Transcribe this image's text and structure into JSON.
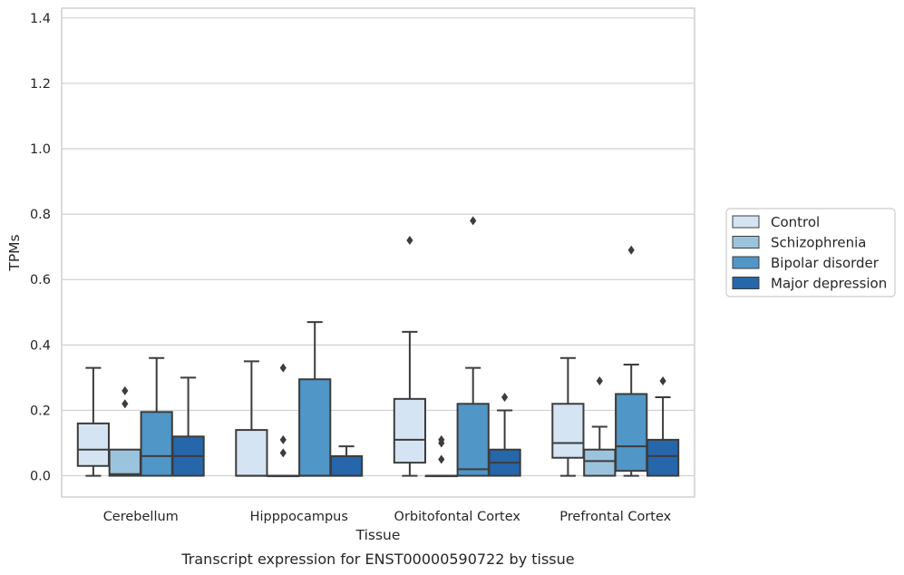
{
  "chart_data": {
    "type": "boxplot",
    "caption": "Transcript expression for ENST00000590722 by tissue",
    "xlabel": "Tissue",
    "ylabel": "TPMs",
    "ylim": [
      -0.065,
      1.43
    ],
    "yticks": [
      0.0,
      0.2,
      0.4,
      0.6,
      0.8,
      1.0,
      1.2,
      1.4
    ],
    "ytick_labels": [
      "0.0",
      "0.2",
      "0.4",
      "0.6",
      "0.8",
      "1.0",
      "1.2",
      "1.4"
    ],
    "grid": "horizontal",
    "legend_position": "right",
    "categories": [
      "Cerebellum",
      "Hipppocampus",
      "Orbitofontal Cortex",
      "Prefrontal Cortex"
    ],
    "series": [
      {
        "name": "Control",
        "color": "#d5e4f3",
        "boxes": [
          {
            "whislo": 0.0,
            "q1": 0.03,
            "med": 0.08,
            "q3": 0.16,
            "whishi": 0.33,
            "fliers": []
          },
          {
            "whislo": 0.0,
            "q1": 0.0,
            "med": 0.0,
            "q3": 0.14,
            "whishi": 0.35,
            "fliers": []
          },
          {
            "whislo": 0.0,
            "q1": 0.04,
            "med": 0.11,
            "q3": 0.235,
            "whishi": 0.44,
            "fliers": [
              0.72
            ]
          },
          {
            "whislo": 0.0,
            "q1": 0.055,
            "med": 0.1,
            "q3": 0.22,
            "whishi": 0.36,
            "fliers": []
          }
        ]
      },
      {
        "name": "Schizophrenia",
        "color": "#9cc3dd",
        "boxes": [
          {
            "whislo": 0.0,
            "q1": 0.0,
            "med": 0.005,
            "q3": 0.08,
            "whishi": 0.08,
            "fliers": [
              0.26,
              0.22
            ]
          },
          {
            "whislo": 0.0,
            "q1": 0.0,
            "med": 0.0,
            "q3": 0.0,
            "whishi": 0.0,
            "fliers": [
              0.33,
              0.11,
              0.07
            ]
          },
          {
            "whislo": 0.0,
            "q1": 0.0,
            "med": 0.0,
            "q3": 0.0,
            "whishi": 0.0,
            "fliers": [
              0.11,
              0.1,
              0.05
            ]
          },
          {
            "whislo": 0.0,
            "q1": 0.0,
            "med": 0.045,
            "q3": 0.08,
            "whishi": 0.15,
            "fliers": [
              0.29
            ]
          }
        ]
      },
      {
        "name": "Bipolar disorder",
        "color": "#5096c6",
        "boxes": [
          {
            "whislo": 0.0,
            "q1": 0.0,
            "med": 0.06,
            "q3": 0.195,
            "whishi": 0.36,
            "fliers": []
          },
          {
            "whislo": 0.0,
            "q1": 0.0,
            "med": 0.0,
            "q3": 0.295,
            "whishi": 0.47,
            "fliers": []
          },
          {
            "whislo": 0.0,
            "q1": 0.0,
            "med": 0.02,
            "q3": 0.22,
            "whishi": 0.33,
            "fliers": [
              0.78
            ]
          },
          {
            "whislo": 0.0,
            "q1": 0.015,
            "med": 0.09,
            "q3": 0.25,
            "whishi": 0.34,
            "fliers": [
              0.69
            ]
          }
        ]
      },
      {
        "name": "Major depression",
        "color": "#2666aa",
        "boxes": [
          {
            "whislo": 0.0,
            "q1": 0.0,
            "med": 0.06,
            "q3": 0.12,
            "whishi": 0.3,
            "fliers": []
          },
          {
            "whislo": 0.0,
            "q1": 0.0,
            "med": 0.0,
            "q3": 0.06,
            "whishi": 0.09,
            "fliers": []
          },
          {
            "whislo": 0.0,
            "q1": 0.0,
            "med": 0.04,
            "q3": 0.08,
            "whishi": 0.2,
            "fliers": [
              0.24
            ]
          },
          {
            "whislo": 0.0,
            "q1": 0.0,
            "med": 0.06,
            "q3": 0.11,
            "whishi": 0.24,
            "fliers": [
              0.29
            ]
          }
        ]
      }
    ],
    "colors": {
      "grid": "#d0d0d0",
      "axes_frame": "#c8c8c8",
      "box_edge": "#3c3c3c",
      "text": "#262626"
    }
  }
}
